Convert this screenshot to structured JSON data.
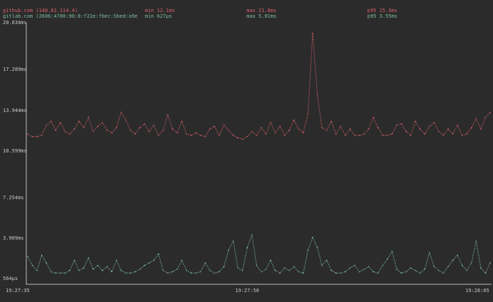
{
  "legend": [
    {
      "host": "github.com (140.82.114.4)",
      "min": "min 12.1ms",
      "max": "max 21.8ms",
      "p95": "p95 15.3ms",
      "color": "#d9606a"
    },
    {
      "host": "gitlab.com (2606:4700:90:0:f22e:fbec:5bed:a9e",
      "min": "min 627µs",
      "max": "max 5.01ms",
      "p95": "p95 3.55ms",
      "color": "#7fbf9a"
    }
  ],
  "chart_data": {
    "type": "line",
    "y_ticks": [
      "20.634ms",
      "17.289ms",
      "13.944ms",
      "10.599ms",
      "7.254ms",
      "3.909ms",
      "564µs"
    ],
    "x_ticks": [
      "19:27:35",
      "19:27:50",
      "19:28:05"
    ],
    "ylim_ms": [
      0.564,
      20.634
    ],
    "xlim_s": [
      0,
      30
    ],
    "series": [
      {
        "name": "github.com (140.82.114.4)",
        "color": "#d9606a",
        "values_ms": [
          11.9,
          11.7,
          11.7,
          11.8,
          12.6,
          12.9,
          12.2,
          12.8,
          12.1,
          11.9,
          12.3,
          12.9,
          12.4,
          13.2,
          12.1,
          12.5,
          12.8,
          12.2,
          12.0,
          12.4,
          13.6,
          13.0,
          12.2,
          11.9,
          12.4,
          12.7,
          12.1,
          12.6,
          11.8,
          12.2,
          13.4,
          12.3,
          12.0,
          12.9,
          11.9,
          11.8,
          12.0,
          11.8,
          11.7,
          12.3,
          12.5,
          11.8,
          12.6,
          12.2,
          11.8,
          11.6,
          11.5,
          11.7,
          12.1,
          11.8,
          12.4,
          11.9,
          12.8,
          12.0,
          12.5,
          11.8,
          12.2,
          13.0,
          12.3,
          12.0,
          13.5,
          19.8,
          15.0,
          12.4,
          12.2,
          12.9,
          11.9,
          12.5,
          11.8,
          12.3,
          11.8,
          11.8,
          11.9,
          12.3,
          13.2,
          12.4,
          11.8,
          11.8,
          11.9,
          12.6,
          12.7,
          12.1,
          11.8,
          12.9,
          12.3,
          11.9,
          12.5,
          12.8,
          12.1,
          11.8,
          12.3,
          11.9,
          12.6,
          11.8,
          11.9,
          12.4,
          13.1,
          12.3,
          13.2,
          13.6
        ]
      },
      {
        "name": "gitlab.com (2606:4700:90:0:f22e:fbec:5bed:a9e",
        "color": "#7fbf9a",
        "values_ms": [
          2.3,
          1.6,
          1.2,
          2.4,
          1.8,
          1.1,
          1.0,
          1.0,
          1.0,
          1.2,
          2.0,
          1.2,
          1.4,
          2.2,
          1.3,
          1.6,
          1.2,
          1.5,
          1.1,
          2.0,
          1.2,
          1.0,
          1.0,
          1.1,
          1.3,
          1.6,
          1.8,
          2.0,
          2.5,
          1.2,
          1.0,
          1.1,
          1.3,
          2.0,
          1.2,
          1.0,
          1.0,
          1.1,
          1.8,
          1.2,
          1.0,
          1.1,
          1.5,
          2.8,
          3.5,
          1.4,
          1.2,
          3.0,
          4.0,
          1.6,
          1.1,
          1.3,
          2.0,
          1.2,
          1.0,
          1.4,
          1.2,
          1.5,
          1.1,
          1.0,
          2.8,
          3.8,
          3.0,
          1.6,
          2.0,
          1.2,
          1.0,
          1.0,
          1.1,
          1.4,
          1.6,
          1.1,
          1.3,
          1.5,
          1.1,
          1.0,
          1.6,
          2.1,
          2.7,
          1.3,
          1.0,
          1.1,
          1.4,
          1.2,
          1.0,
          1.3,
          2.6,
          1.5,
          1.2,
          1.0,
          1.5,
          2.0,
          2.4,
          1.6,
          1.2,
          1.8,
          3.5,
          1.4,
          1.0,
          1.8
        ]
      }
    ]
  }
}
